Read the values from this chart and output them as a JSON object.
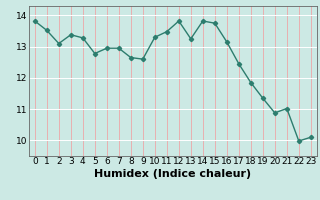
{
  "x": [
    0,
    1,
    2,
    3,
    4,
    5,
    6,
    7,
    8,
    9,
    10,
    11,
    12,
    13,
    14,
    15,
    16,
    17,
    18,
    19,
    20,
    21,
    22,
    23
  ],
  "y": [
    13.82,
    13.52,
    13.1,
    13.38,
    13.28,
    12.78,
    12.95,
    12.95,
    12.65,
    12.6,
    13.3,
    13.48,
    13.82,
    13.25,
    13.82,
    13.75,
    13.15,
    12.45,
    11.85,
    11.35,
    10.88,
    11.02,
    9.98,
    10.1
  ],
  "line_color": "#2d7d6e",
  "marker": "D",
  "marker_size": 2.2,
  "bg_color": "#cce9e4",
  "vgrid_color": "#e8b0b0",
  "hgrid_color": "#ffffff",
  "xlabel": "Humidex (Indice chaleur)",
  "xlabel_fontsize": 8,
  "ylim": [
    9.5,
    14.3
  ],
  "xlim": [
    -0.5,
    23.5
  ],
  "yticks": [
    10,
    11,
    12,
    13,
    14
  ],
  "xticks": [
    0,
    1,
    2,
    3,
    4,
    5,
    6,
    7,
    8,
    9,
    10,
    11,
    12,
    13,
    14,
    15,
    16,
    17,
    18,
    19,
    20,
    21,
    22,
    23
  ],
  "tick_fontsize": 6.5,
  "line_width": 1.0
}
